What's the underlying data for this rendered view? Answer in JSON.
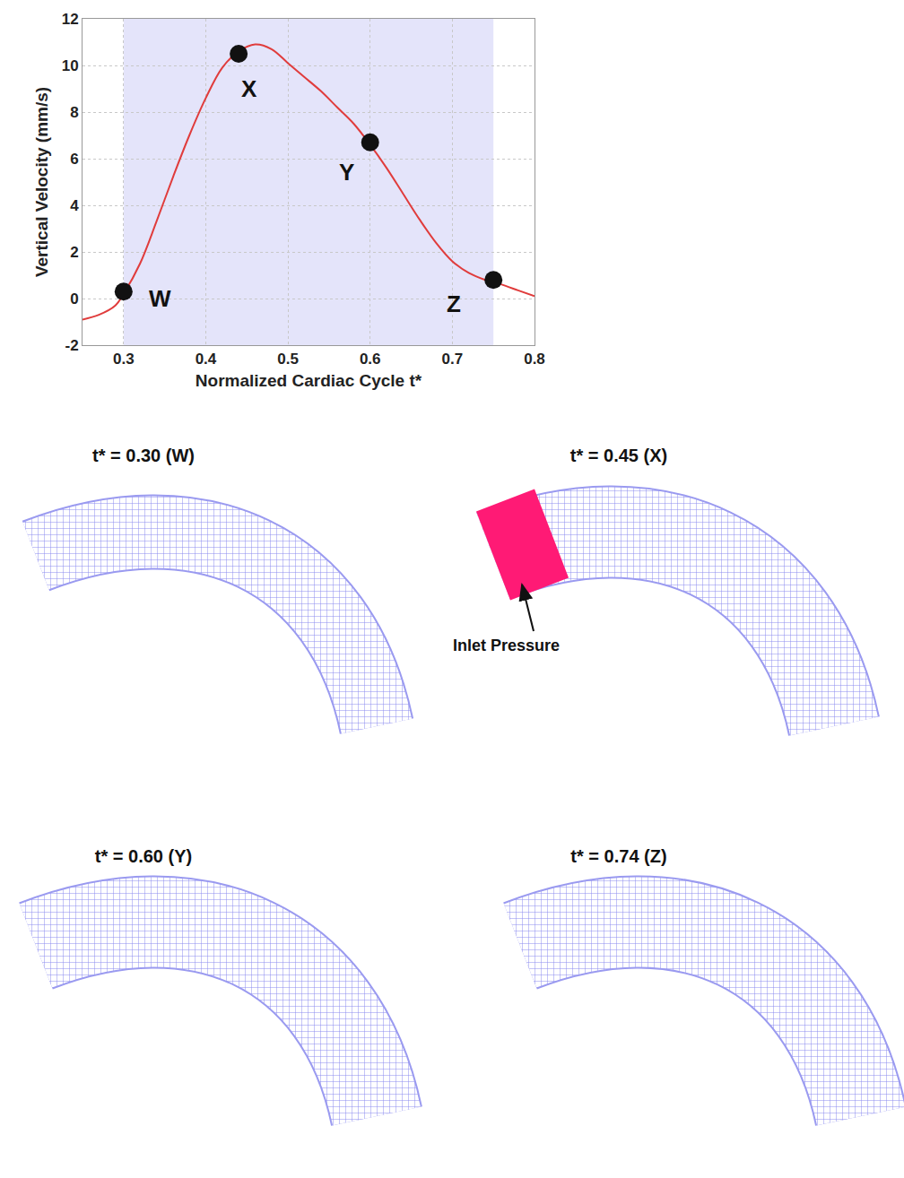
{
  "chart_data": {
    "type": "line",
    "xlabel": "Normalized Cardiac Cycle t*",
    "ylabel": "Vertical Velocity (mm/s)",
    "x": [
      0.25,
      0.27,
      0.29,
      0.3,
      0.32,
      0.34,
      0.36,
      0.38,
      0.4,
      0.42,
      0.44,
      0.46,
      0.48,
      0.5,
      0.52,
      0.54,
      0.56,
      0.58,
      0.6,
      0.62,
      0.64,
      0.66,
      0.68,
      0.7,
      0.72,
      0.74,
      0.76,
      0.78,
      0.8
    ],
    "values": [
      -0.9,
      -0.7,
      -0.3,
      0.2,
      1.5,
      3.3,
      5.2,
      7.0,
      8.6,
      9.9,
      10.6,
      10.9,
      10.7,
      10.1,
      9.5,
      8.9,
      8.2,
      7.5,
      6.6,
      5.6,
      4.5,
      3.4,
      2.4,
      1.6,
      1.1,
      0.8,
      0.6,
      0.35,
      0.1
    ],
    "color": "#e03c3c",
    "xlim": [
      0.25,
      0.8
    ],
    "xticks": [
      0.3,
      0.4,
      0.5,
      0.6,
      0.7,
      0.8
    ],
    "ylim": [
      -2,
      12
    ],
    "yticks": [
      -2,
      0,
      2,
      4,
      6,
      8,
      10,
      12
    ],
    "grid": true,
    "highlight": [
      0.3,
      0.75
    ],
    "points": [
      {
        "label": "W",
        "x": 0.3,
        "y": 0.3
      },
      {
        "label": "X",
        "x": 0.44,
        "y": 10.5
      },
      {
        "label": "Y",
        "x": 0.6,
        "y": 6.7
      },
      {
        "label": "Z",
        "x": 0.75,
        "y": 0.8
      }
    ]
  },
  "panels": [
    {
      "title": "t* = 0.30 (W)"
    },
    {
      "title": "t* = 0.45 (X)",
      "label": "Inlet Pressure"
    },
    {
      "title": "t* = 0.60 (Y)"
    },
    {
      "title": "t* = 0.74 (Z)"
    }
  ]
}
